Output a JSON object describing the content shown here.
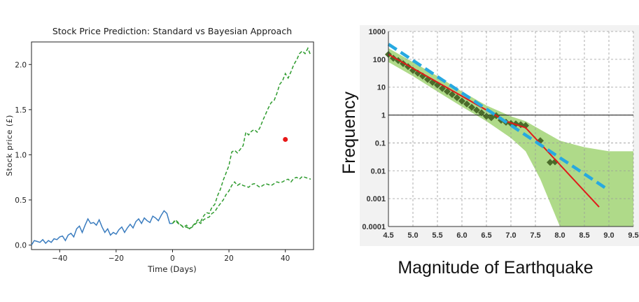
{
  "chart_data": [
    {
      "type": "line",
      "title": "Stock Price Prediction: Standard vs Bayesian Approach",
      "xlabel": "Time (Days)",
      "ylabel": "Stock price (£)",
      "xlim": [
        -50,
        50
      ],
      "ylim": [
        -0.05,
        2.25
      ],
      "x_ticks": [
        "−40",
        "−20",
        "0",
        "20",
        "40"
      ],
      "x_tick_values": [
        -40,
        -20,
        0,
        20,
        40
      ],
      "y_ticks": [
        "0.0",
        "0.5",
        "1.0",
        "1.5",
        "2.0"
      ],
      "y_tick_values": [
        0.0,
        0.5,
        1.0,
        1.5,
        2.0
      ],
      "grid": false,
      "series": [
        {
          "color": "#3a7cbf",
          "style": "solid",
          "x": [
            -50,
            -49,
            -48,
            -47,
            -46,
            -45,
            -44,
            -43,
            -42,
            -41,
            -40,
            -39,
            -38,
            -37,
            -36,
            -35,
            -34,
            -33,
            -32,
            -31,
            -30,
            -29,
            -28,
            -27,
            -26,
            -25,
            -24,
            -23,
            -22,
            -21,
            -20,
            -19,
            -18,
            -17,
            -16,
            -15,
            -14,
            -13,
            -12,
            -11,
            -10,
            -9,
            -8,
            -7,
            -6,
            -5,
            -4,
            -3,
            -2,
            -1,
            0
          ],
          "y": [
            0.0,
            0.05,
            0.04,
            0.03,
            0.06,
            0.02,
            0.05,
            0.03,
            0.07,
            0.06,
            0.09,
            0.1,
            0.05,
            0.11,
            0.13,
            0.09,
            0.18,
            0.21,
            0.14,
            0.22,
            0.29,
            0.24,
            0.25,
            0.22,
            0.28,
            0.2,
            0.14,
            0.18,
            0.11,
            0.14,
            0.12,
            0.17,
            0.2,
            0.14,
            0.19,
            0.23,
            0.19,
            0.26,
            0.29,
            0.24,
            0.3,
            0.27,
            0.25,
            0.32,
            0.3,
            0.27,
            0.33,
            0.38,
            0.35,
            0.24,
            0.24
          ]
        },
        {
          "color": "#2e9b2e",
          "style": "dashed",
          "x": [
            0,
            1,
            2,
            3,
            4,
            5,
            6,
            7,
            8,
            9,
            10,
            11,
            12,
            13,
            14,
            15,
            16,
            17,
            18,
            19,
            20,
            21,
            22,
            23,
            24,
            25,
            26,
            27,
            28,
            29,
            30,
            31,
            32,
            33,
            34,
            35,
            36,
            37,
            38,
            39,
            40,
            41,
            42,
            43,
            44,
            45,
            46,
            47,
            48,
            49
          ],
          "y": [
            0.24,
            0.28,
            0.25,
            0.22,
            0.2,
            0.22,
            0.18,
            0.21,
            0.24,
            0.28,
            0.26,
            0.32,
            0.36,
            0.35,
            0.42,
            0.45,
            0.55,
            0.62,
            0.72,
            0.8,
            0.88,
            1.03,
            1.05,
            1.02,
            1.06,
            1.1,
            1.25,
            1.22,
            1.26,
            1.28,
            1.25,
            1.3,
            1.38,
            1.45,
            1.52,
            1.58,
            1.6,
            1.68,
            1.78,
            1.82,
            1.9,
            1.85,
            1.92,
            2.0,
            2.05,
            2.12,
            2.15,
            2.12,
            2.18,
            2.1
          ]
        },
        {
          "color": "#2e9b2e",
          "style": "dashed",
          "x": [
            0,
            1,
            2,
            3,
            4,
            5,
            6,
            7,
            8,
            9,
            10,
            11,
            12,
            13,
            14,
            15,
            16,
            17,
            18,
            19,
            20,
            21,
            22,
            23,
            24,
            25,
            26,
            27,
            28,
            29,
            30,
            31,
            32,
            33,
            34,
            35,
            36,
            37,
            38,
            39,
            40,
            41,
            42,
            43,
            44,
            45,
            46,
            47,
            48,
            49
          ],
          "y": [
            0.24,
            0.27,
            0.24,
            0.22,
            0.19,
            0.2,
            0.18,
            0.2,
            0.23,
            0.26,
            0.24,
            0.28,
            0.3,
            0.31,
            0.35,
            0.37,
            0.42,
            0.46,
            0.5,
            0.56,
            0.6,
            0.66,
            0.7,
            0.66,
            0.68,
            0.66,
            0.65,
            0.64,
            0.67,
            0.68,
            0.66,
            0.64,
            0.66,
            0.68,
            0.67,
            0.66,
            0.68,
            0.7,
            0.69,
            0.7,
            0.72,
            0.73,
            0.7,
            0.74,
            0.75,
            0.73,
            0.76,
            0.75,
            0.74,
            0.73
          ]
        }
      ],
      "points": [
        {
          "x": 40,
          "y": 1.17,
          "color": "#e81818"
        }
      ]
    },
    {
      "type": "scatter",
      "title": "",
      "xlabel": "Magnitude of Earthquake",
      "ylabel": "Frequency",
      "x_scale": "linear",
      "y_scale": "log",
      "xlim": [
        4.5,
        9.5
      ],
      "ylim": [
        0.0001,
        1000
      ],
      "x_ticks": [
        "4.5",
        "5.0",
        "5.5",
        "6.0",
        "6.5",
        "7.0",
        "7.5",
        "8.0",
        "8.5",
        "9.0",
        "9.5"
      ],
      "x_tick_values": [
        4.5,
        5.0,
        5.5,
        6.0,
        6.5,
        7.0,
        7.5,
        8.0,
        8.5,
        9.0,
        9.5
      ],
      "y_ticks": [
        "0.0001",
        "0.001",
        "0.01",
        "0.1",
        "1",
        "10",
        "100",
        "1000"
      ],
      "y_tick_values": [
        0.0001,
        0.001,
        0.01,
        0.1,
        1,
        10,
        100,
        1000
      ],
      "grid": true,
      "reference_line_y": 1,
      "band": {
        "color": "#9bd16b",
        "x": [
          4.5,
          5.0,
          5.5,
          6.0,
          6.5,
          7.0,
          7.3,
          7.6,
          8.0,
          8.5,
          9.0,
          9.5
        ],
        "upper": [
          250,
          80,
          25,
          7,
          2.2,
          0.9,
          0.6,
          0.3,
          0.12,
          0.07,
          0.05,
          0.05
        ],
        "lower": [
          80,
          25,
          7,
          2,
          0.6,
          0.15,
          0.05,
          0.005,
          0.0001,
          0.0001,
          0.0001,
          0.0001
        ]
      },
      "series": [
        {
          "name": "",
          "color": "#4a6b2a",
          "marker": "diamond",
          "x": [
            4.5,
            4.6,
            4.7,
            4.8,
            4.9,
            5.0,
            5.1,
            5.2,
            5.3,
            5.4,
            5.5,
            5.6,
            5.7,
            5.8,
            5.9,
            6.0,
            6.1,
            6.2,
            6.3,
            6.4,
            6.5,
            6.6,
            6.7,
            6.8,
            6.9,
            7.0,
            7.1,
            7.2,
            7.3,
            7.6,
            7.8,
            7.9
          ],
          "y": [
            150,
            110,
            90,
            70,
            55,
            40,
            32,
            25,
            19,
            15,
            12,
            9,
            7,
            5.5,
            4.2,
            3.2,
            2.5,
            1.9,
            1.5,
            1.2,
            0.9,
            0.8,
            0.95,
            0.65,
            0.55,
            0.5,
            0.48,
            0.45,
            0.42,
            0.12,
            0.02,
            0.021
          ]
        },
        {
          "name": "",
          "color": "#e01a1a",
          "style": "solid",
          "x": [
            4.5,
            6.9,
            7.3,
            8.8
          ],
          "y": [
            150,
            0.6,
            0.35,
            0.0005
          ]
        },
        {
          "name": "",
          "color": "#27a9e1",
          "style": "dashed",
          "x": [
            4.5,
            9.0
          ],
          "y": [
            350,
            0.002
          ]
        }
      ]
    }
  ]
}
